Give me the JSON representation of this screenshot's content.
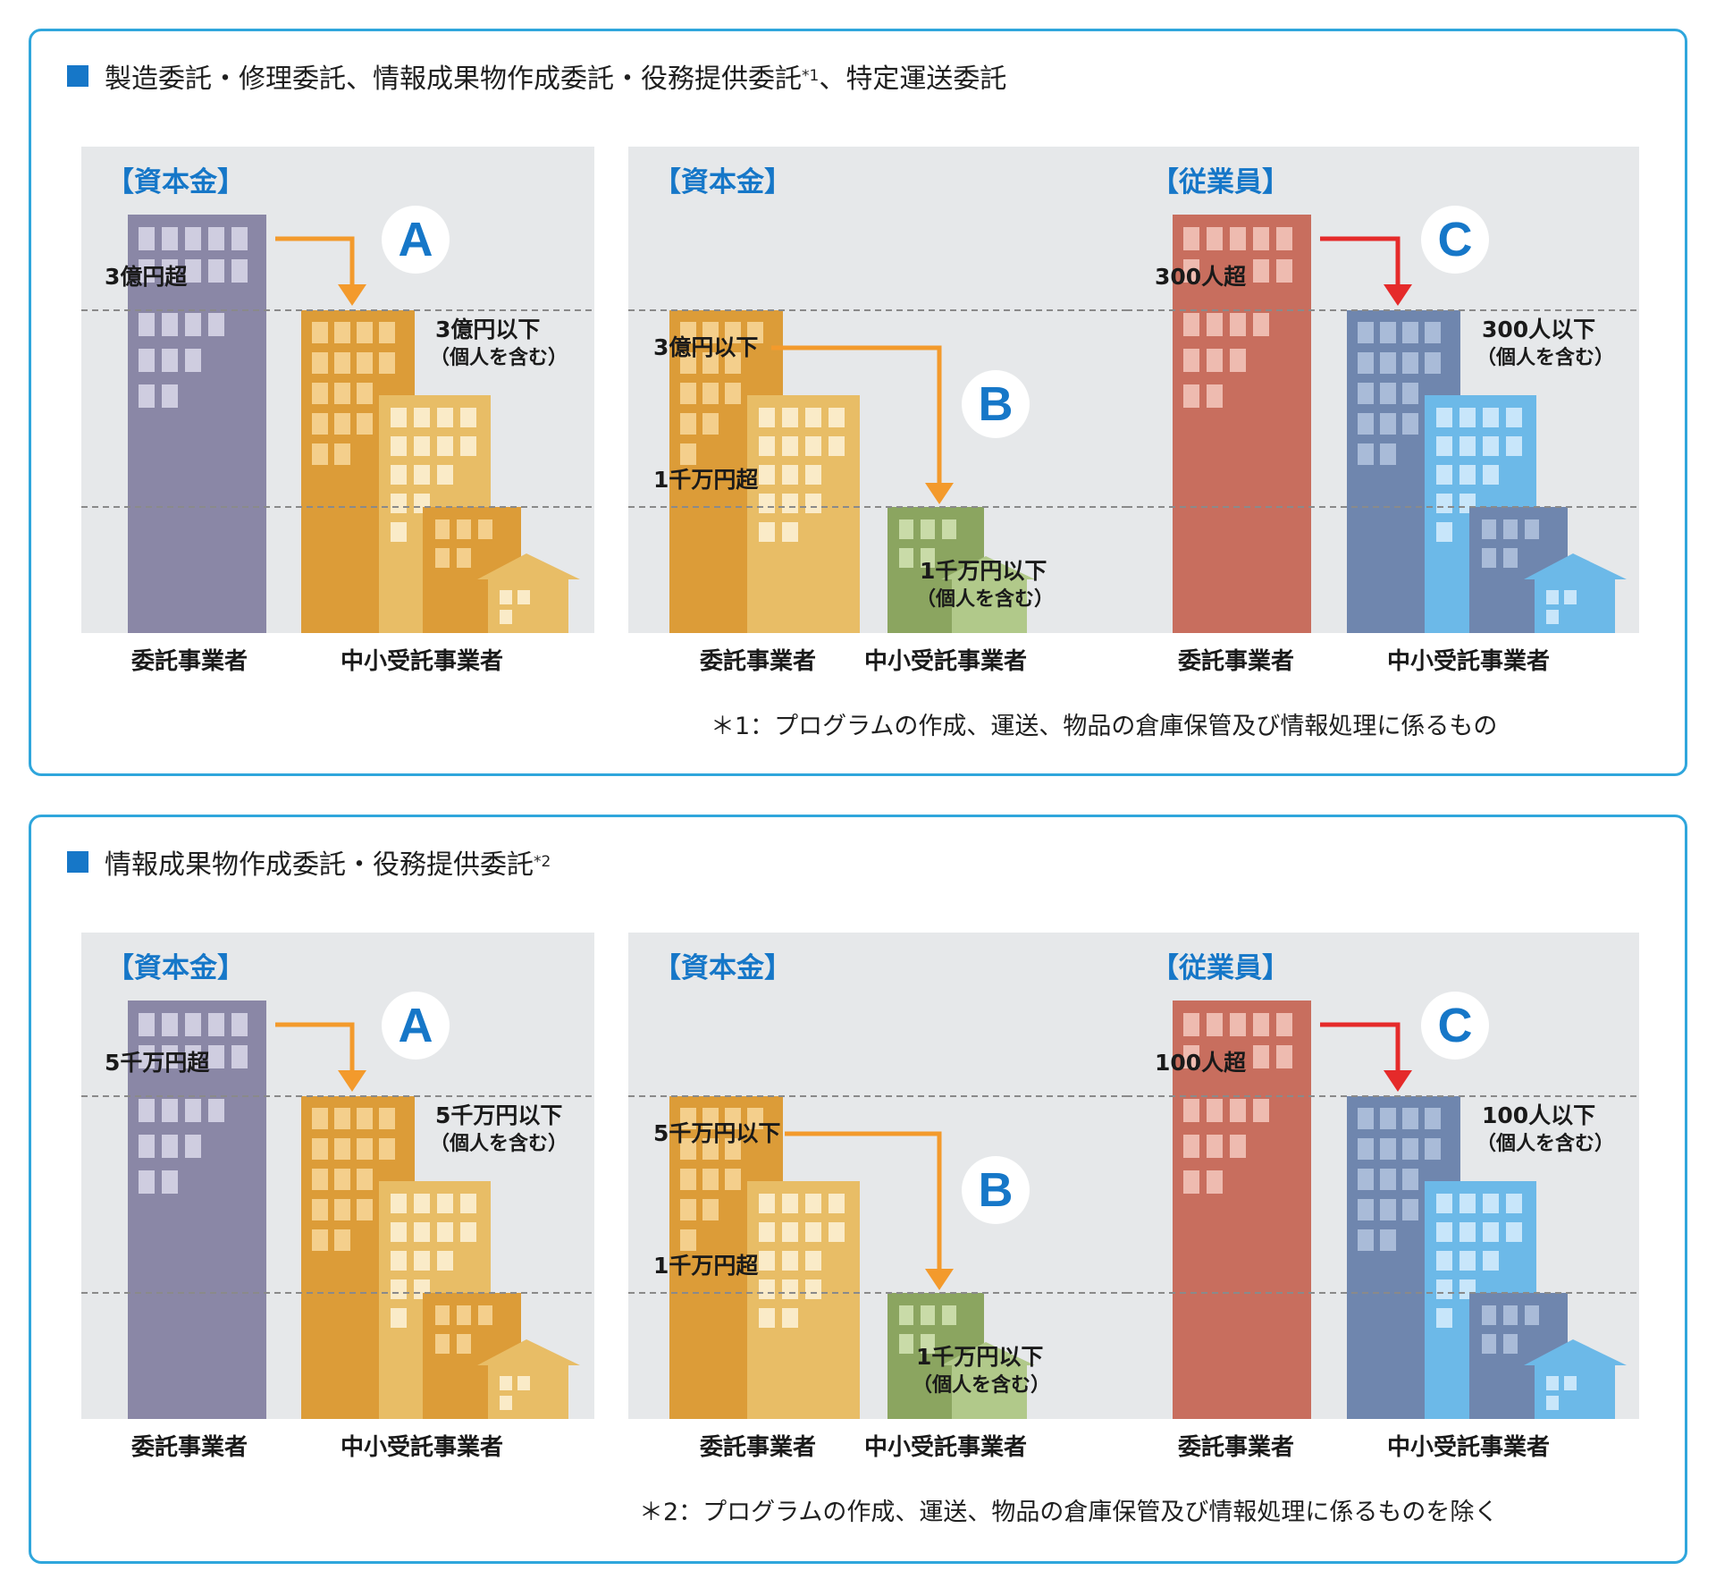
{
  "sections": [
    {
      "title": "製造委託・修理委託、情報成果物作成委託・役務提供委託",
      "title_sup": "*1",
      "title_tail": "、特定運送委託",
      "footnote": "＊1：プログラムの作成、運送、物品の倉庫保管及び情報処理に係るもの",
      "panels": [
        {
          "head": "【資本金】",
          "badge": "A",
          "upper": "3億円超",
          "lower": "3億円以下",
          "lower_sub": "（個人を含む）",
          "cap_left": "委託事業者",
          "cap_right": "中小受託事業者"
        },
        {
          "head": "【資本金】",
          "badge": "B",
          "upper": "3億円以下",
          "middle": "1千万円超",
          "lower": "1千万円以下",
          "lower_sub": "（個人を含む）",
          "cap_left": "委託事業者",
          "cap_right": "中小受託事業者"
        },
        {
          "head": "【従業員】",
          "badge": "C",
          "upper": "300人超",
          "lower": "300人以下",
          "lower_sub": "（個人を含む）",
          "cap_left": "委託事業者",
          "cap_right": "中小受託事業者"
        }
      ]
    },
    {
      "title": "情報成果物作成委託・役務提供委託",
      "title_sup": "*2",
      "title_tail": "",
      "footnote": "＊2：プログラムの作成、運送、物品の倉庫保管及び情報処理に係るものを除く",
      "panels": [
        {
          "head": "【資本金】",
          "badge": "A",
          "upper": "5千万円超",
          "lower": "5千万円以下",
          "lower_sub": "（個人を含む）",
          "cap_left": "委託事業者",
          "cap_right": "中小受託事業者"
        },
        {
          "head": "【資本金】",
          "badge": "B",
          "upper": "5千万円以下",
          "middle": "1千万円超",
          "lower": "1千万円以下",
          "lower_sub": "（個人を含む）",
          "cap_left": "委託事業者",
          "cap_right": "中小受託事業者"
        },
        {
          "head": "【従業員】",
          "badge": "C",
          "upper": "100人超",
          "lower": "100人以下",
          "lower_sub": "（個人を含む）",
          "cap_left": "委託事業者",
          "cap_right": "中小受託事業者"
        }
      ]
    }
  ],
  "colors": {
    "frame": "#2fa6dc",
    "panel_bg": "#e6e8ea",
    "heading": "#1677c8",
    "purple_building": "#8a87a6",
    "orange_building": "#dc9c38",
    "orange_light": "#e8bd66",
    "green_building": "#8ba560",
    "green_light": "#b1c98a",
    "red_building": "#c86e5e",
    "blue_building": "#6f86ae",
    "blue_light": "#6cb9e8",
    "arrow_orange": "#f39a2c",
    "arrow_red": "#e52a2a"
  }
}
